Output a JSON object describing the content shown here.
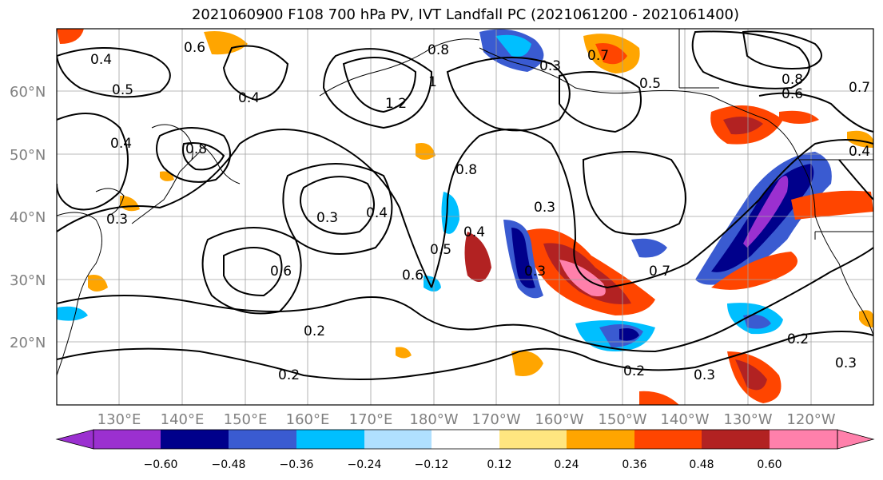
{
  "title": "2021060900 F108 700 hPa PV, IVT Landfall PC (2021061200 - 2021061400)",
  "lon_labels": [
    "130°E",
    "140°E",
    "150°E",
    "160°E",
    "170°E",
    "180°W",
    "170°W",
    "160°W",
    "150°W",
    "140°W",
    "130°W",
    "120°W"
  ],
  "lat_labels": [
    "60°N",
    "50°N",
    "40°N",
    "30°N",
    "20°N"
  ],
  "colorbar": {
    "tick_labels": [
      "−0.60",
      "−0.48",
      "−0.36",
      "−0.24",
      "−0.12",
      "0.12",
      "0.24",
      "0.36",
      "0.48",
      "0.60"
    ],
    "colors": [
      "#9b30d0",
      "#00008b",
      "#3a5bd1",
      "#00bfff",
      "#b0e0ff",
      "#ffffff",
      "#ffe680",
      "#ffa500",
      "#ff4500",
      "#b22222",
      "#ff80ab"
    ]
  },
  "contour_labels": [
    "0.4",
    "0.5",
    "0.6",
    "0.4",
    "0.8",
    "0.4",
    "0.3",
    "0.8",
    "1.2",
    "1",
    "0.3",
    "0.4",
    "0.6",
    "0.3",
    "0.5",
    "0.4",
    "0.6",
    "0.8",
    "0.3",
    "0.7",
    "0.5",
    "0.8",
    "0.7",
    "0.6",
    "0.3",
    "0.7",
    "0.2",
    "0.2",
    "0.3",
    "0.2",
    "0.3",
    "0.2",
    "0.4"
  ],
  "colors": {
    "contour": "#000000",
    "grid": "#a0a0a0",
    "coast": "#000000"
  }
}
